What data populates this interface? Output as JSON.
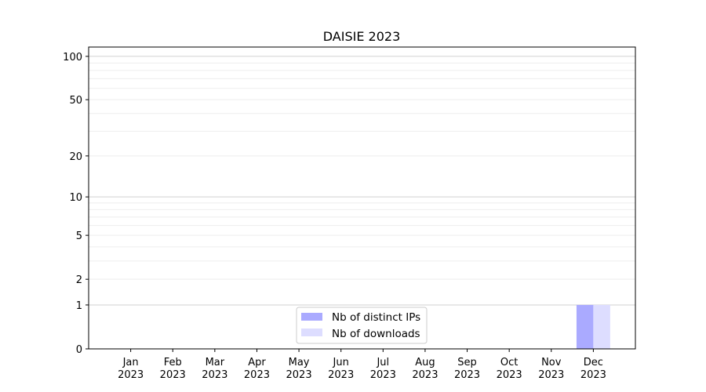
{
  "chart_data": {
    "type": "bar",
    "title": "DAISIE 2023",
    "xlabel": "",
    "ylabel": "",
    "categories": [
      "Jan\n2023",
      "Feb\n2023",
      "Mar\n2023",
      "Apr\n2023",
      "May\n2023",
      "Jun\n2023",
      "Jul\n2023",
      "Aug\n2023",
      "Sep\n2023",
      "Oct\n2023",
      "Nov\n2023",
      "Dec\n2023"
    ],
    "series": [
      {
        "name": "Nb of distinct IPs",
        "color": "#aaaaff",
        "values": [
          0,
          0,
          0,
          0,
          0,
          0,
          0,
          0,
          0,
          0,
          0,
          1
        ]
      },
      {
        "name": "Nb of downloads",
        "color": "#ddddff",
        "values": [
          0,
          0,
          0,
          0,
          0,
          0,
          0,
          0,
          0,
          0,
          0,
          1
        ]
      }
    ],
    "yscale": "log(1+y)",
    "ylim": [
      0,
      116
    ],
    "yticks": [
      0,
      1,
      2,
      5,
      10,
      20,
      50,
      100
    ],
    "grid": true,
    "legend": "bottom-center"
  }
}
